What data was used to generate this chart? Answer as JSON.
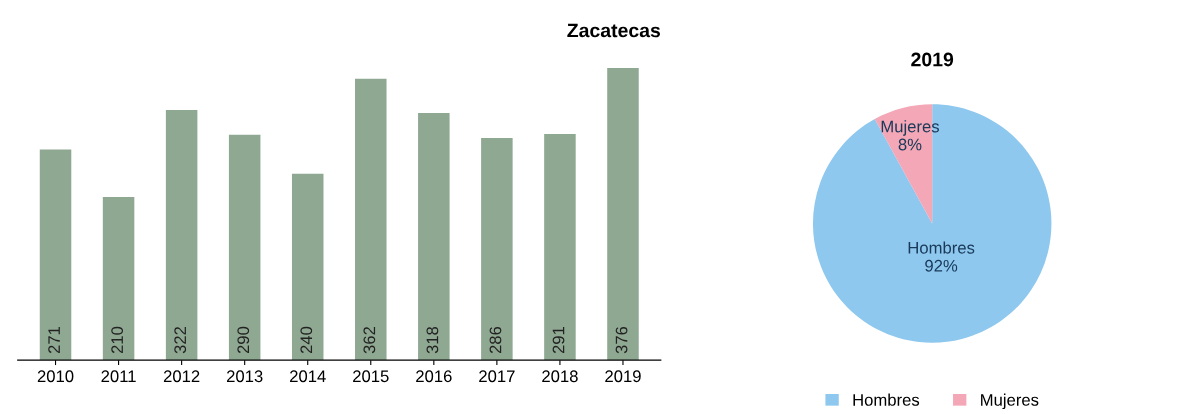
{
  "chart_data": [
    {
      "type": "bar",
      "title": "Zacatecas",
      "categories": [
        "2010",
        "2011",
        "2012",
        "2013",
        "2014",
        "2015",
        "2016",
        "2017",
        "2018",
        "2019"
      ],
      "values": [
        271,
        210,
        322,
        290,
        240,
        362,
        318,
        286,
        291,
        376
      ],
      "color": "#8fa892",
      "data_labels": true,
      "grid": false,
      "legend": false
    },
    {
      "type": "pie",
      "title": "2019",
      "categories": [
        "Hombres",
        "Mujeres"
      ],
      "values": [
        92,
        8
      ],
      "colors": [
        "#8ec8ee",
        "#f4a7b6"
      ],
      "value_labels": [
        "92%",
        "8%"
      ],
      "legend": "bottom"
    }
  ]
}
